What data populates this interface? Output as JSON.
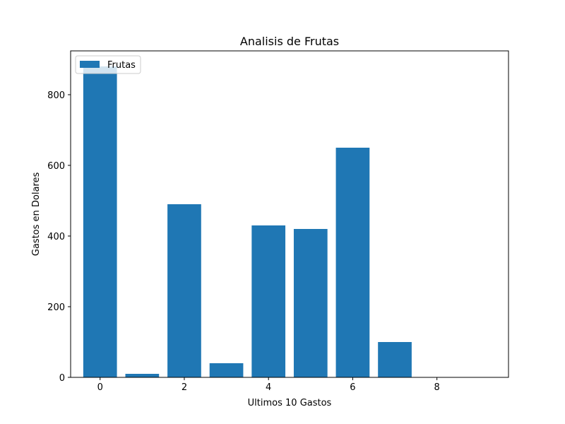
{
  "chart_data": {
    "type": "bar",
    "title": "Analisis de Frutas",
    "xlabel": "Ultimos 10 Gastos",
    "ylabel": "Gastos en Dolares",
    "x": [
      0,
      1,
      2,
      3,
      4,
      5,
      6,
      7,
      8,
      9
    ],
    "series": [
      {
        "name": "Frutas",
        "values": [
          880,
          10,
          490,
          40,
          430,
          420,
          650,
          100,
          0,
          0
        ]
      }
    ],
    "xlim": [
      -0.7,
      9.7
    ],
    "ylim": [
      0,
      924
    ],
    "xticks": [
      0,
      2,
      4,
      6,
      8
    ],
    "yticks": [
      0,
      200,
      400,
      600,
      800
    ],
    "grid": false,
    "legend_position": "upper left",
    "colors": {
      "bar": "#1f77b4"
    }
  }
}
